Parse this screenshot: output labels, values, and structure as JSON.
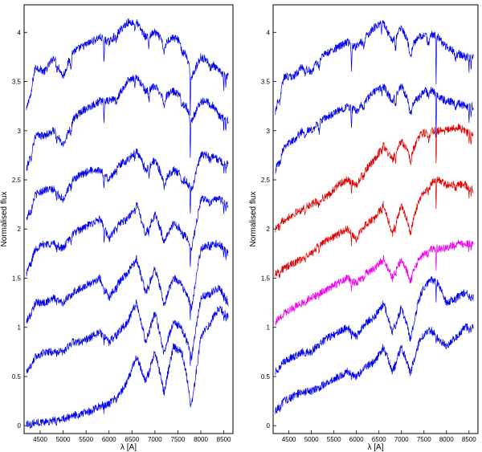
{
  "chart_data": [
    {
      "type": "line",
      "panel": "left",
      "xlabel": "λ [A]",
      "ylabel": "Normalised flux",
      "xlim": [
        4150,
        8700
      ],
      "ylim": [
        -0.08,
        4.28
      ],
      "xticks": [
        4500,
        5000,
        5500,
        6000,
        6500,
        7000,
        7500,
        8000,
        8500
      ],
      "yticks": [
        0,
        0.5,
        1,
        1.5,
        2,
        2.5,
        3,
        3.5,
        4
      ],
      "ytick_labels": [
        "0",
        "0.5",
        "1",
        "1.5",
        "2",
        "2.5",
        "3",
        "3.5",
        "4"
      ],
      "grid": false,
      "series": [
        {
          "color": "#0000ee",
          "x": [
            4200,
            4400,
            4600,
            4800,
            5000,
            5200,
            5400,
            5600,
            5800,
            6000,
            6200,
            6400,
            6600,
            6800,
            7000,
            7200,
            7400,
            7600,
            7800,
            8000,
            8200,
            8400,
            8600
          ],
          "values": [
            3.2,
            3.65,
            3.6,
            3.75,
            3.55,
            3.8,
            3.85,
            3.9,
            3.95,
            3.9,
            4.0,
            4.1,
            4.1,
            3.95,
            4.0,
            3.9,
            3.95,
            3.9,
            3.55,
            3.75,
            3.7,
            3.6,
            3.55
          ]
        },
        {
          "color": "#0000ee",
          "x": [
            4200,
            4400,
            4600,
            4800,
            5000,
            5200,
            5400,
            5600,
            5800,
            6000,
            6200,
            6400,
            6600,
            6800,
            7000,
            7200,
            7400,
            7600,
            7800,
            8000,
            8200,
            8400,
            8600
          ],
          "values": [
            2.6,
            2.95,
            2.95,
            3.0,
            2.85,
            3.1,
            3.2,
            3.25,
            3.3,
            3.3,
            3.35,
            3.5,
            3.55,
            3.4,
            3.45,
            3.35,
            3.4,
            3.35,
            3.1,
            3.3,
            3.3,
            3.15,
            3.1
          ]
        },
        {
          "color": "#0000ee",
          "x": [
            4200,
            4400,
            4600,
            4800,
            5000,
            5200,
            5400,
            5600,
            5800,
            6000,
            6200,
            6400,
            6600,
            6800,
            7000,
            7200,
            7400,
            7600,
            7800,
            8000,
            8200,
            8400,
            8600
          ],
          "values": [
            2.1,
            2.35,
            2.4,
            2.4,
            2.3,
            2.5,
            2.55,
            2.6,
            2.6,
            2.5,
            2.65,
            2.7,
            2.8,
            2.6,
            2.7,
            2.5,
            2.6,
            2.55,
            2.4,
            2.75,
            2.75,
            2.7,
            2.65
          ]
        },
        {
          "color": "#0000ee",
          "x": [
            4200,
            4400,
            4600,
            4800,
            5000,
            5200,
            5400,
            5600,
            5800,
            6000,
            6200,
            6400,
            6600,
            6800,
            7000,
            7200,
            7400,
            7600,
            7800,
            8000,
            8200,
            8400,
            8600
          ],
          "values": [
            1.55,
            1.8,
            1.85,
            1.85,
            1.8,
            1.95,
            2.0,
            2.05,
            2.1,
            1.9,
            2.05,
            2.1,
            2.25,
            1.95,
            2.15,
            1.9,
            2.05,
            2.0,
            1.8,
            2.3,
            2.3,
            2.3,
            2.25
          ]
        },
        {
          "color": "#0000ee",
          "x": [
            4200,
            4400,
            4600,
            4800,
            5000,
            5200,
            5400,
            5600,
            5800,
            6000,
            6200,
            6400,
            6600,
            6800,
            7000,
            7200,
            7400,
            7600,
            7800,
            8000,
            8200,
            8400,
            8600
          ],
          "values": [
            1.05,
            1.25,
            1.25,
            1.3,
            1.25,
            1.35,
            1.4,
            1.45,
            1.5,
            1.3,
            1.45,
            1.55,
            1.7,
            1.35,
            1.6,
            1.25,
            1.5,
            1.45,
            1.2,
            1.8,
            1.85,
            1.85,
            1.75
          ]
        },
        {
          "color": "#0000ee",
          "x": [
            4200,
            4400,
            4600,
            4800,
            5000,
            5200,
            5400,
            5600,
            5800,
            6000,
            6200,
            6400,
            6600,
            6800,
            7000,
            7200,
            7400,
            7600,
            7800,
            8000,
            8200,
            8400,
            8600
          ],
          "values": [
            0.55,
            0.7,
            0.75,
            0.75,
            0.75,
            0.85,
            0.85,
            0.9,
            0.95,
            0.85,
            0.95,
            1.05,
            1.25,
            0.85,
            1.15,
            0.75,
            1.05,
            1.0,
            0.7,
            1.3,
            1.35,
            1.4,
            1.25
          ]
        },
        {
          "color": "#0000ee",
          "x": [
            4200,
            4400,
            4600,
            4800,
            5000,
            5200,
            5400,
            5600,
            5800,
            6000,
            6200,
            6400,
            6600,
            6800,
            7000,
            7200,
            7400,
            7600,
            7800,
            8000,
            8200,
            8400,
            8600
          ],
          "values": [
            0.02,
            0.03,
            0.04,
            0.05,
            0.07,
            0.1,
            0.12,
            0.15,
            0.2,
            0.22,
            0.3,
            0.45,
            0.7,
            0.45,
            0.75,
            0.35,
            0.8,
            0.75,
            0.2,
            0.9,
            1.05,
            1.2,
            1.1
          ]
        }
      ]
    },
    {
      "type": "line",
      "panel": "right",
      "xlabel": "λ [A]",
      "ylabel": "Normalised flux",
      "xlim": [
        4150,
        8700
      ],
      "ylim": [
        -0.08,
        4.28
      ],
      "xticks": [
        4500,
        5000,
        5500,
        6000,
        6500,
        7000,
        7500,
        8000,
        8500
      ],
      "yticks": [
        0,
        0.5,
        1,
        1.5,
        2,
        2.5,
        3,
        3.5,
        4
      ],
      "ytick_labels": [
        "0",
        "0.5",
        "1",
        "1.5",
        "2",
        "2.5",
        "3",
        "3.5",
        "4"
      ],
      "grid": false,
      "series": [
        {
          "color": "#0000ee",
          "x": [
            4200,
            4400,
            4600,
            4800,
            5000,
            5200,
            5400,
            5600,
            5800,
            6000,
            6200,
            6400,
            6600,
            6800,
            7000,
            7200,
            7400,
            7600,
            7800,
            8000,
            8200,
            8400,
            8600
          ],
          "values": [
            3.2,
            3.55,
            3.55,
            3.65,
            3.6,
            3.75,
            3.8,
            3.85,
            3.9,
            3.85,
            3.95,
            4.05,
            4.1,
            3.9,
            4.05,
            3.85,
            3.95,
            4.0,
            3.95,
            3.85,
            3.8,
            3.75,
            3.75
          ]
        },
        {
          "color": "#0000ee",
          "x": [
            4200,
            4400,
            4600,
            4800,
            5000,
            5200,
            5400,
            5600,
            5800,
            6000,
            6200,
            6400,
            6600,
            6800,
            7000,
            7200,
            7400,
            7600,
            7800,
            8000,
            8200,
            8400,
            8600
          ],
          "values": [
            2.6,
            2.85,
            2.9,
            3.0,
            3.0,
            3.1,
            3.15,
            3.2,
            3.25,
            3.2,
            3.3,
            3.4,
            3.45,
            3.3,
            3.45,
            3.25,
            3.35,
            3.45,
            3.35,
            3.3,
            3.3,
            3.25,
            3.25
          ]
        },
        {
          "color": "#e00000",
          "x": [
            4200,
            4400,
            4600,
            4800,
            5000,
            5200,
            5400,
            5600,
            5800,
            6000,
            6200,
            6400,
            6600,
            6800,
            7000,
            7200,
            7400,
            7600,
            7800,
            8000,
            8200,
            8400,
            8600
          ],
          "values": [
            2.0,
            2.1,
            2.15,
            2.2,
            2.25,
            2.3,
            2.35,
            2.45,
            2.5,
            2.45,
            2.6,
            2.7,
            2.85,
            2.7,
            2.9,
            2.75,
            2.95,
            3.0,
            3.0,
            3.0,
            3.05,
            3.0,
            2.95
          ]
        },
        {
          "color": "#e00000",
          "x": [
            4200,
            4400,
            4600,
            4800,
            5000,
            5200,
            5400,
            5600,
            5800,
            6000,
            6200,
            6400,
            6600,
            6800,
            7000,
            7200,
            7400,
            7600,
            7800,
            8000,
            8200,
            8400,
            8600
          ],
          "values": [
            1.55,
            1.6,
            1.65,
            1.7,
            1.75,
            1.85,
            1.9,
            1.95,
            2.0,
            1.9,
            2.05,
            2.1,
            2.25,
            1.95,
            2.25,
            2.0,
            2.3,
            2.45,
            2.5,
            2.45,
            2.45,
            2.45,
            2.4
          ]
        },
        {
          "color": "#ee00ee",
          "x": [
            4200,
            4400,
            4600,
            4800,
            5000,
            5200,
            5400,
            5600,
            5800,
            6000,
            6200,
            6400,
            6600,
            6800,
            7000,
            7200,
            7400,
            7600,
            7800,
            8000,
            8200,
            8400,
            8600
          ],
          "values": [
            1.05,
            1.15,
            1.2,
            1.25,
            1.3,
            1.35,
            1.4,
            1.45,
            1.5,
            1.45,
            1.55,
            1.6,
            1.7,
            1.5,
            1.7,
            1.5,
            1.7,
            1.8,
            1.8,
            1.8,
            1.85,
            1.85,
            1.85
          ]
        },
        {
          "color": "#0000ee",
          "x": [
            4200,
            4400,
            4600,
            4800,
            5000,
            5200,
            5400,
            5600,
            5800,
            6000,
            6200,
            6400,
            6600,
            6800,
            7000,
            7200,
            7400,
            7600,
            7800,
            8000,
            8200,
            8400,
            8600
          ],
          "values": [
            0.55,
            0.65,
            0.7,
            0.75,
            0.75,
            0.85,
            0.9,
            0.95,
            1.0,
            0.9,
            1.05,
            1.1,
            1.25,
            0.95,
            1.2,
            0.9,
            1.3,
            1.5,
            1.45,
            1.25,
            1.3,
            1.35,
            1.3
          ]
        },
        {
          "color": "#0000ee",
          "x": [
            4200,
            4400,
            4600,
            4800,
            5000,
            5200,
            5400,
            5600,
            5800,
            6000,
            6200,
            6400,
            6600,
            6800,
            7000,
            7200,
            7400,
            7600,
            7800,
            8000,
            8200,
            8400,
            8600
          ],
          "values": [
            0.15,
            0.25,
            0.3,
            0.35,
            0.35,
            0.4,
            0.45,
            0.5,
            0.55,
            0.5,
            0.6,
            0.65,
            0.8,
            0.55,
            0.8,
            0.55,
            0.85,
            1.0,
            0.9,
            0.8,
            0.9,
            1.0,
            1.0
          ]
        }
      ]
    }
  ]
}
